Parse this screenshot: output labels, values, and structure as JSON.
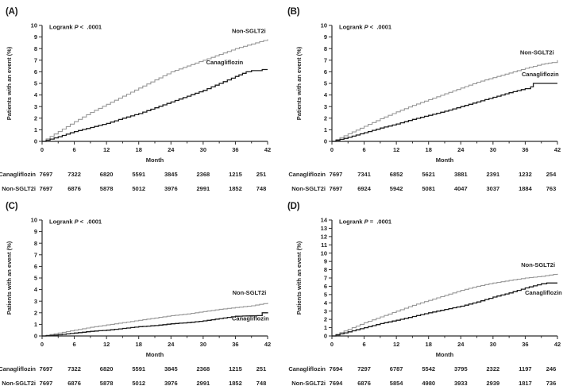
{
  "figure": {
    "xlabel": "Month",
    "ylabel": "Patients with an event (%)",
    "x_ticks": [
      0,
      6,
      12,
      18,
      24,
      30,
      36,
      42
    ],
    "colors": {
      "non_sglt2i": "#979797",
      "canagliflozin": "#1c1c1c",
      "axis": "#2a2a2a",
      "text": "#252525",
      "background": "#ffffff"
    }
  },
  "chart_data": [
    {
      "panel": "(A)",
      "type": "line",
      "logrank": {
        "prefix": "Logrank",
        "p": "P",
        "comparison": "<  .0001"
      },
      "xlabel": "Month",
      "ylabel": "Patients with an event (%)",
      "xlim": [
        0,
        42
      ],
      "ylim": [
        0,
        10
      ],
      "y_tick_step": 1,
      "x_ticks": [
        0,
        6,
        12,
        18,
        24,
        30,
        36,
        42
      ],
      "grid": false,
      "series": [
        {
          "name": "Non-SGLT2i",
          "color": "#979797",
          "label_pos": {
            "x": 38.5,
            "y": 9.35
          },
          "points": [
            [
              0,
              0
            ],
            [
              3,
              0.85
            ],
            [
              6,
              1.7
            ],
            [
              9,
              2.5
            ],
            [
              12,
              3.2
            ],
            [
              15,
              3.9
            ],
            [
              18,
              4.6
            ],
            [
              21,
              5.3
            ],
            [
              24,
              6.0
            ],
            [
              27,
              6.5
            ],
            [
              30,
              7.0
            ],
            [
              33,
              7.5
            ],
            [
              36,
              8.0
            ],
            [
              39,
              8.4
            ],
            [
              42,
              8.8
            ]
          ]
        },
        {
          "name": "Canagliflozin",
          "color": "#1c1c1c",
          "label_pos": {
            "x": 34.0,
            "y": 6.65
          },
          "points": [
            [
              0,
              0
            ],
            [
              3,
              0.4
            ],
            [
              6,
              0.85
            ],
            [
              9,
              1.2
            ],
            [
              12,
              1.55
            ],
            [
              15,
              2.0
            ],
            [
              18,
              2.4
            ],
            [
              21,
              2.9
            ],
            [
              24,
              3.4
            ],
            [
              27,
              3.9
            ],
            [
              30,
              4.4
            ],
            [
              33,
              5.0
            ],
            [
              36,
              5.6
            ],
            [
              38,
              6.0
            ],
            [
              39,
              6.1
            ],
            [
              41,
              6.1
            ],
            [
              41,
              6.2
            ],
            [
              42,
              6.2
            ]
          ]
        }
      ],
      "risk_table": [
        {
          "label": "Canagliflozin",
          "values": [
            7697,
            7322,
            6820,
            5591,
            3845,
            2368,
            1215,
            251
          ]
        },
        {
          "label": "Non-SGLT2i",
          "values": [
            7697,
            6876,
            5878,
            5012,
            3976,
            2991,
            1852,
            748
          ]
        }
      ]
    },
    {
      "panel": "(B)",
      "type": "line",
      "logrank": {
        "prefix": "Logrank",
        "p": "P",
        "comparison": "<  .0001"
      },
      "xlabel": "Month",
      "ylabel": "Patients with an event (%)",
      "xlim": [
        0,
        42
      ],
      "ylim": [
        0,
        10
      ],
      "y_tick_step": 1,
      "x_ticks": [
        0,
        6,
        12,
        18,
        24,
        30,
        36,
        42
      ],
      "grid": false,
      "series": [
        {
          "name": "Non-SGLT2i",
          "color": "#979797",
          "label_pos": {
            "x": 38.2,
            "y": 7.5
          },
          "points": [
            [
              0,
              0
            ],
            [
              3,
              0.65
            ],
            [
              6,
              1.3
            ],
            [
              9,
              1.95
            ],
            [
              12,
              2.55
            ],
            [
              15,
              3.1
            ],
            [
              18,
              3.6
            ],
            [
              21,
              4.1
            ],
            [
              24,
              4.6
            ],
            [
              27,
              5.1
            ],
            [
              30,
              5.5
            ],
            [
              33,
              5.9
            ],
            [
              36,
              6.3
            ],
            [
              39,
              6.65
            ],
            [
              41,
              6.8
            ],
            [
              42,
              7.0
            ]
          ]
        },
        {
          "name": "Canagliflozin",
          "color": "#1c1c1c",
          "label_pos": {
            "x": 38.8,
            "y": 5.6
          },
          "points": [
            [
              0,
              0
            ],
            [
              3,
              0.35
            ],
            [
              6,
              0.75
            ],
            [
              9,
              1.15
            ],
            [
              12,
              1.5
            ],
            [
              15,
              1.9
            ],
            [
              18,
              2.25
            ],
            [
              21,
              2.6
            ],
            [
              24,
              3.0
            ],
            [
              27,
              3.4
            ],
            [
              30,
              3.8
            ],
            [
              33,
              4.2
            ],
            [
              36,
              4.55
            ],
            [
              37,
              4.7
            ],
            [
              37.5,
              5.0
            ],
            [
              42,
              5.0
            ]
          ]
        }
      ],
      "risk_table": [
        {
          "label": "Canagliflozin",
          "values": [
            7697,
            7341,
            6852,
            5621,
            3881,
            2391,
            1232,
            254
          ]
        },
        {
          "label": "Non-SGLT2i",
          "values": [
            7697,
            6924,
            5942,
            5081,
            4047,
            3037,
            1884,
            763
          ]
        }
      ]
    },
    {
      "panel": "(C)",
      "type": "line",
      "logrank": {
        "prefix": "Logrank",
        "p": "P",
        "comparison": "<  .0001"
      },
      "xlabel": "Month",
      "ylabel": "Patients with an event (%)",
      "xlim": [
        0,
        42
      ],
      "ylim": [
        0,
        10
      ],
      "y_tick_step": 1,
      "x_ticks": [
        0,
        6,
        12,
        18,
        24,
        30,
        36,
        42
      ],
      "grid": false,
      "series": [
        {
          "name": "Non-SGLT2i",
          "color": "#979797",
          "label_pos": {
            "x": 38.6,
            "y": 3.55
          },
          "points": [
            [
              0,
              0
            ],
            [
              3,
              0.25
            ],
            [
              6,
              0.5
            ],
            [
              9,
              0.75
            ],
            [
              12,
              0.95
            ],
            [
              15,
              1.15
            ],
            [
              18,
              1.35
            ],
            [
              21,
              1.55
            ],
            [
              24,
              1.75
            ],
            [
              27,
              1.9
            ],
            [
              30,
              2.1
            ],
            [
              33,
              2.3
            ],
            [
              36,
              2.45
            ],
            [
              39,
              2.6
            ],
            [
              42,
              2.85
            ]
          ]
        },
        {
          "name": "Canagliflozin",
          "color": "#1c1c1c",
          "label_pos": {
            "x": 38.8,
            "y": 1.35
          },
          "points": [
            [
              0,
              0
            ],
            [
              3,
              0.1
            ],
            [
              6,
              0.25
            ],
            [
              9,
              0.4
            ],
            [
              12,
              0.5
            ],
            [
              15,
              0.65
            ],
            [
              18,
              0.8
            ],
            [
              21,
              0.9
            ],
            [
              24,
              1.05
            ],
            [
              27,
              1.15
            ],
            [
              30,
              1.3
            ],
            [
              33,
              1.5
            ],
            [
              36,
              1.7
            ],
            [
              40,
              1.75
            ],
            [
              41,
              2.0
            ],
            [
              42,
              2.05
            ]
          ]
        }
      ],
      "risk_table": [
        {
          "label": "Canagliflozin",
          "values": [
            7697,
            7322,
            6820,
            5591,
            3845,
            2368,
            1215,
            251
          ]
        },
        {
          "label": "Non-SGLT2i",
          "values": [
            7697,
            6876,
            5878,
            5012,
            3976,
            2991,
            1852,
            748
          ]
        }
      ]
    },
    {
      "panel": "(D)",
      "type": "line",
      "logrank": {
        "prefix": "Logrank",
        "p": "P",
        "comparison": "=  .0001"
      },
      "xlabel": "Month",
      "ylabel": "Patients with an event (%)",
      "xlim": [
        0,
        42
      ],
      "ylim": [
        0,
        14
      ],
      "y_tick_step": 1,
      "x_ticks": [
        0,
        6,
        12,
        18,
        24,
        30,
        36,
        42
      ],
      "grid": false,
      "series": [
        {
          "name": "Non-SGLT2i",
          "color": "#979797",
          "label_pos": {
            "x": 38.4,
            "y": 8.35
          },
          "points": [
            [
              0,
              0
            ],
            [
              3,
              0.8
            ],
            [
              6,
              1.6
            ],
            [
              9,
              2.3
            ],
            [
              12,
              3.0
            ],
            [
              15,
              3.7
            ],
            [
              18,
              4.3
            ],
            [
              21,
              4.9
            ],
            [
              24,
              5.5
            ],
            [
              27,
              6.0
            ],
            [
              30,
              6.4
            ],
            [
              33,
              6.7
            ],
            [
              36,
              7.0
            ],
            [
              39,
              7.2
            ],
            [
              42,
              7.5
            ]
          ]
        },
        {
          "name": "Canagliflozin",
          "color": "#1c1c1c",
          "label_pos": {
            "x": 39.4,
            "y": 5.0
          },
          "points": [
            [
              0,
              0
            ],
            [
              3,
              0.5
            ],
            [
              6,
              1.0
            ],
            [
              9,
              1.5
            ],
            [
              12,
              1.9
            ],
            [
              15,
              2.35
            ],
            [
              18,
              2.8
            ],
            [
              21,
              3.2
            ],
            [
              24,
              3.6
            ],
            [
              27,
              4.1
            ],
            [
              30,
              4.7
            ],
            [
              33,
              5.2
            ],
            [
              36,
              5.8
            ],
            [
              39,
              6.3
            ],
            [
              40,
              6.4
            ],
            [
              42,
              6.4
            ]
          ]
        }
      ],
      "risk_table": [
        {
          "label": "Canagliflozin",
          "values": [
            7694,
            7297,
            6787,
            5542,
            3795,
            2322,
            1197,
            246
          ]
        },
        {
          "label": "Non-SGLT2i",
          "values": [
            7694,
            6876,
            5854,
            4980,
            3933,
            2939,
            1817,
            736
          ]
        }
      ]
    }
  ]
}
